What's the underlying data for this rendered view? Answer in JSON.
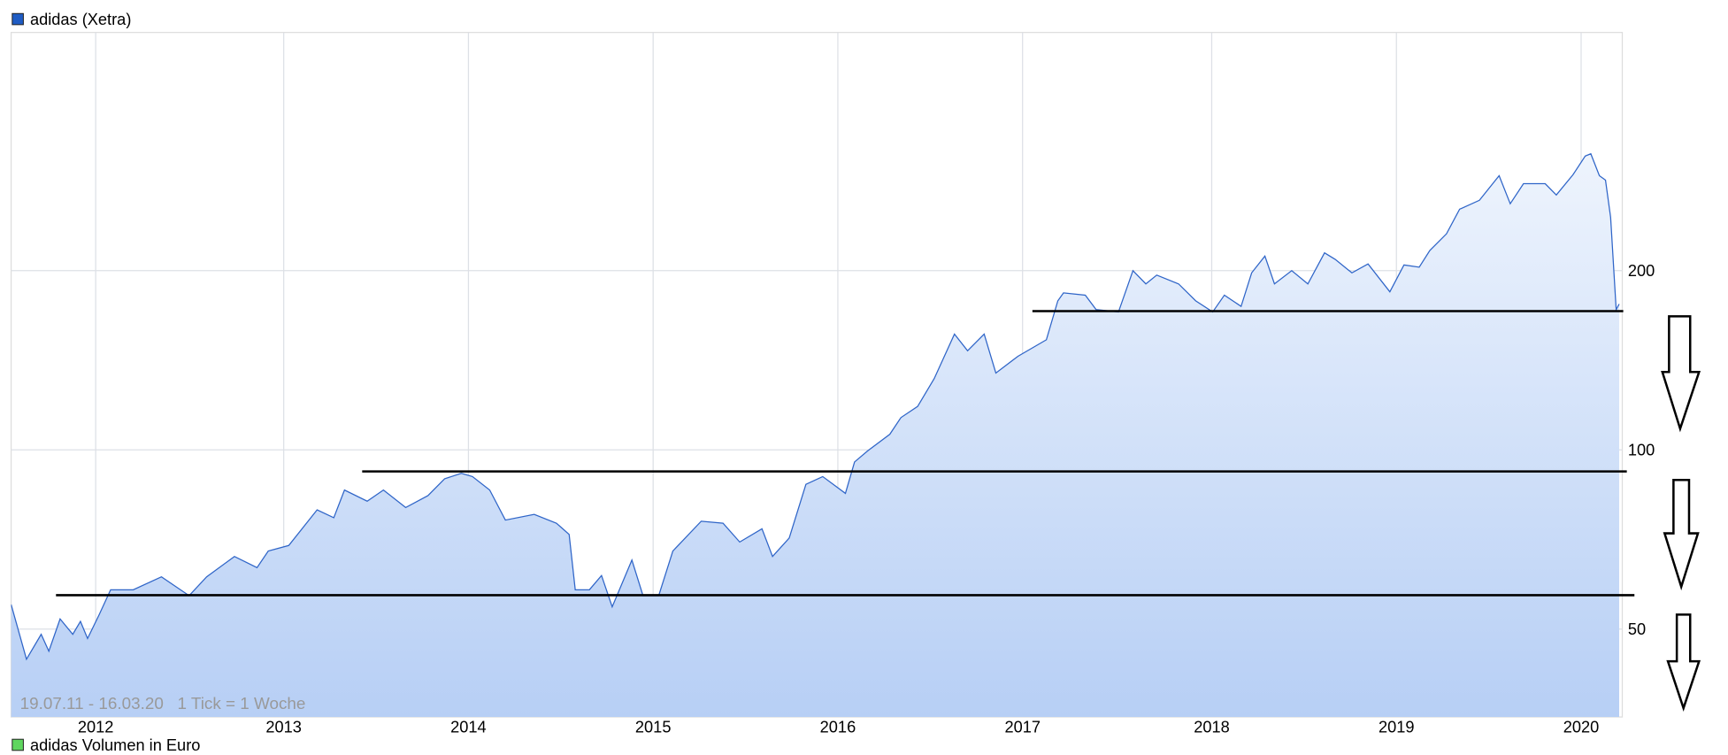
{
  "chart_data": {
    "type": "area",
    "title": "adidas (Xetra)",
    "series_color": "#2f65c8",
    "legend_swatch_color": "#1f5cc4",
    "fill_gradient": [
      "#eef4fd",
      "#b7cff5"
    ],
    "date_range_label": "19.07.11 - 16.03.20   1 Tick = 1 Woche",
    "secondary_legend": {
      "label": "adidas Volumen in Euro",
      "color": "#5fd65f"
    },
    "y_scale": "log",
    "ylim": [
      35.7,
      503
    ],
    "y_ticks": [
      {
        "value": 200,
        "label": "200"
      },
      {
        "value": 100,
        "label": "100"
      },
      {
        "value": 50,
        "label": "50"
      }
    ],
    "x_ticks": [
      "2012",
      "2013",
      "2014",
      "2015",
      "2016",
      "2017",
      "2018",
      "2019",
      "2020"
    ],
    "grid": true,
    "y_axis_side": "right",
    "support_lines": [
      {
        "value": 171,
        "from": "2017-01-20",
        "to": "2020-03-24"
      },
      {
        "value": 92,
        "from": "2013-06-05",
        "to": "2020-03-31"
      },
      {
        "value": 57,
        "from": "2011-10-15",
        "to": "2020-04-15"
      }
    ],
    "annotations": [
      "down-arrow",
      "down-arrow",
      "down-arrow"
    ],
    "x": [
      "2011-07-19",
      "2011-08-18",
      "2011-09-16",
      "2011-10-01",
      "2011-10-23",
      "2011-11-17",
      "2011-12-02",
      "2011-12-16",
      "2012-01-08",
      "2012-01-30",
      "2012-03-14",
      "2012-05-08",
      "2012-07-01",
      "2012-08-04",
      "2012-09-27",
      "2012-11-10",
      "2012-12-02",
      "2013-01-11",
      "2013-03-08",
      "2013-04-10",
      "2013-05-01",
      "2013-06-15",
      "2013-07-17",
      "2013-08-30",
      "2013-10-13",
      "2013-11-15",
      "2013-12-18",
      "2014-01-09",
      "2014-02-12",
      "2014-03-15",
      "2014-05-11",
      "2014-06-24",
      "2014-07-19",
      "2014-07-31",
      "2014-08-28",
      "2014-09-21",
      "2014-10-12",
      "2014-11-20",
      "2014-12-12",
      "2015-01-12",
      "2015-02-09",
      "2015-04-06",
      "2015-05-19",
      "2015-06-21",
      "2015-08-04",
      "2015-08-25",
      "2015-09-27",
      "2015-10-30",
      "2015-12-02",
      "2016-01-16",
      "2016-02-03",
      "2016-02-29",
      "2016-04-13",
      "2016-05-05",
      "2016-06-07",
      "2016-07-10",
      "2016-08-19",
      "2016-09-14",
      "2016-10-17",
      "2016-11-09",
      "2016-12-23",
      "2017-02-16",
      "2017-03-10",
      "2017-03-21",
      "2017-05-02",
      "2017-05-23",
      "2017-07-05",
      "2017-08-02",
      "2017-08-27",
      "2017-09-17",
      "2017-10-29",
      "2017-12-01",
      "2018-01-03",
      "2018-01-26",
      "2018-02-28",
      "2018-03-21",
      "2018-04-16",
      "2018-05-05",
      "2018-06-08",
      "2018-07-10",
      "2018-08-12",
      "2018-09-02",
      "2018-10-05",
      "2018-11-06",
      "2018-12-19",
      "2019-01-16",
      "2019-02-15",
      "2019-03-08",
      "2019-04-10",
      "2019-05-06",
      "2019-06-14",
      "2019-07-23",
      "2019-08-14",
      "2019-09-09",
      "2019-10-22",
      "2019-11-13",
      "2019-12-16",
      "2020-01-09",
      "2020-01-20",
      "2020-02-06",
      "2020-02-18",
      "2020-02-28",
      "2020-03-10",
      "2020-03-16"
    ],
    "values": [
      55.0,
      44.5,
      49.0,
      45.9,
      52.0,
      49.0,
      51.5,
      48.2,
      52.9,
      58.2,
      58.2,
      61.2,
      56.9,
      61.2,
      66.2,
      63.4,
      67.6,
      69.1,
      79.3,
      76.9,
      85.6,
      82.0,
      85.6,
      80.0,
      83.8,
      89.4,
      91.3,
      90.2,
      85.6,
      76.2,
      77.9,
      75.3,
      72.1,
      58.2,
      58.2,
      61.5,
      54.5,
      65.3,
      56.9,
      56.9,
      67.6,
      75.9,
      75.3,
      70.0,
      73.7,
      66.2,
      71.1,
      87.5,
      90.2,
      84.5,
      95.4,
      99.6,
      106.2,
      113.3,
      118.3,
      131.7,
      156.5,
      146.7,
      156.5,
      134.6,
      143.6,
      153.1,
      178.0,
      183.5,
      181.9,
      172.0,
      170.5,
      200.0,
      190.0,
      196.6,
      190.0,
      178.0,
      170.5,
      181.9,
      174.2,
      198.3,
      211.6,
      190.0,
      200.0,
      190.0,
      214.3,
      208.9,
      198.3,
      205.2,
      184.3,
      204.4,
      202.7,
      216.2,
      230.6,
      253.7,
      262.5,
      288.7,
      259.1,
      279.9,
      279.9,
      268.0,
      289.9,
      311.6,
      314.3,
      288.7,
      283.8,
      245.9,
      172.0,
      175.8
    ]
  }
}
